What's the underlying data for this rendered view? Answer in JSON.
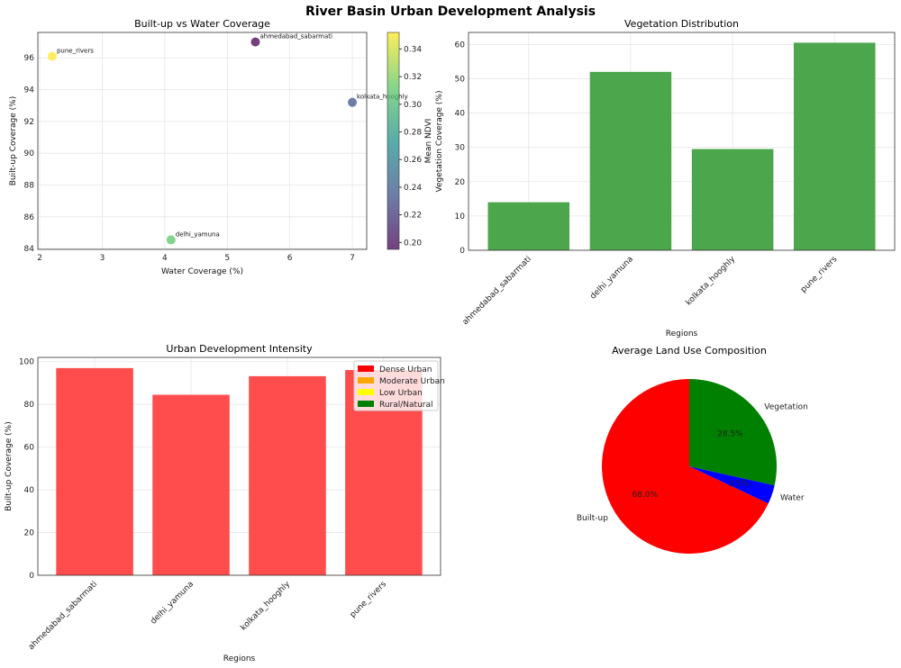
{
  "chart_data": [
    {
      "type": "scatter",
      "title": "Built-up vs Water Coverage",
      "xlabel": "Water Coverage (%)",
      "ylabel": "Built-up Coverage (%)",
      "xlim": [
        1.97,
        7.23
      ],
      "ylim": [
        83.95,
        97.6
      ],
      "xticks": [
        2,
        3,
        4,
        5,
        6,
        7
      ],
      "yticks": [
        84,
        86,
        88,
        90,
        92,
        94,
        96
      ],
      "grid": true,
      "points": [
        {
          "label": "ahmedabad_sabarmati",
          "x": 5.45,
          "y": 97.0,
          "ndvi": 0.195
        },
        {
          "label": "delhi_yamuna",
          "x": 4.1,
          "y": 84.55,
          "ndvi": 0.31
        },
        {
          "label": "kolkata_hooghly",
          "x": 7.0,
          "y": 93.2,
          "ndvi": 0.235
        },
        {
          "label": "pune_rivers",
          "x": 2.2,
          "y": 96.1,
          "ndvi": 0.352
        }
      ],
      "colorbar": {
        "label": "Mean NDVI",
        "range": [
          0.195,
          0.352
        ],
        "ticks": [
          "0.20",
          "0.22",
          "0.24",
          "0.26",
          "0.28",
          "0.30",
          "0.32",
          "0.34"
        ]
      }
    },
    {
      "type": "bar",
      "title": "Vegetation Distribution",
      "xlabel": "Regions",
      "ylabel": "Vegetation Coverage (%)",
      "categories": [
        "ahmedabad_sabarmati",
        "delhi_yamuna",
        "kolkata_hooghly",
        "pune_rivers"
      ],
      "values": [
        14.0,
        52.0,
        29.5,
        60.5
      ],
      "ylim": [
        0,
        63.5
      ],
      "yticks": [
        0,
        10,
        20,
        30,
        40,
        50,
        60
      ],
      "color": "#4ca64c",
      "grid": true
    },
    {
      "type": "bar",
      "title": "Urban Development Intensity",
      "xlabel": "Regions",
      "ylabel": "Built-up Coverage (%)",
      "categories": [
        "ahmedabad_sabarmati",
        "delhi_yamuna",
        "kolkata_hooghly",
        "pune_rivers"
      ],
      "values": [
        97.0,
        84.5,
        93.2,
        96.1
      ],
      "ylim": [
        0,
        102
      ],
      "yticks": [
        0,
        20,
        40,
        60,
        80,
        100
      ],
      "color": "#ff4d4d",
      "grid": true,
      "legend": {
        "placement": "top-right",
        "entries": [
          {
            "label": "Dense Urban",
            "color": "#ff0000"
          },
          {
            "label": "Moderate Urban",
            "color": "#ffa500"
          },
          {
            "label": "Low Urban",
            "color": "#ffff00"
          },
          {
            "label": "Rural/Natural",
            "color": "#008000"
          }
        ]
      }
    },
    {
      "type": "pie",
      "title": "Average Land Use Composition",
      "slices": [
        {
          "label": "Built-up",
          "value": 68.0,
          "pct": "68.0%",
          "color": "#ff0000"
        },
        {
          "label": "Water",
          "value": 3.5,
          "pct": "3.5%",
          "color": "#0000ff"
        },
        {
          "label": "Vegetation",
          "value": 28.5,
          "pct": "28.5%",
          "color": "#008000"
        }
      ],
      "startangle": 90
    }
  ],
  "suptitle": "River Basin Urban Development Analysis"
}
